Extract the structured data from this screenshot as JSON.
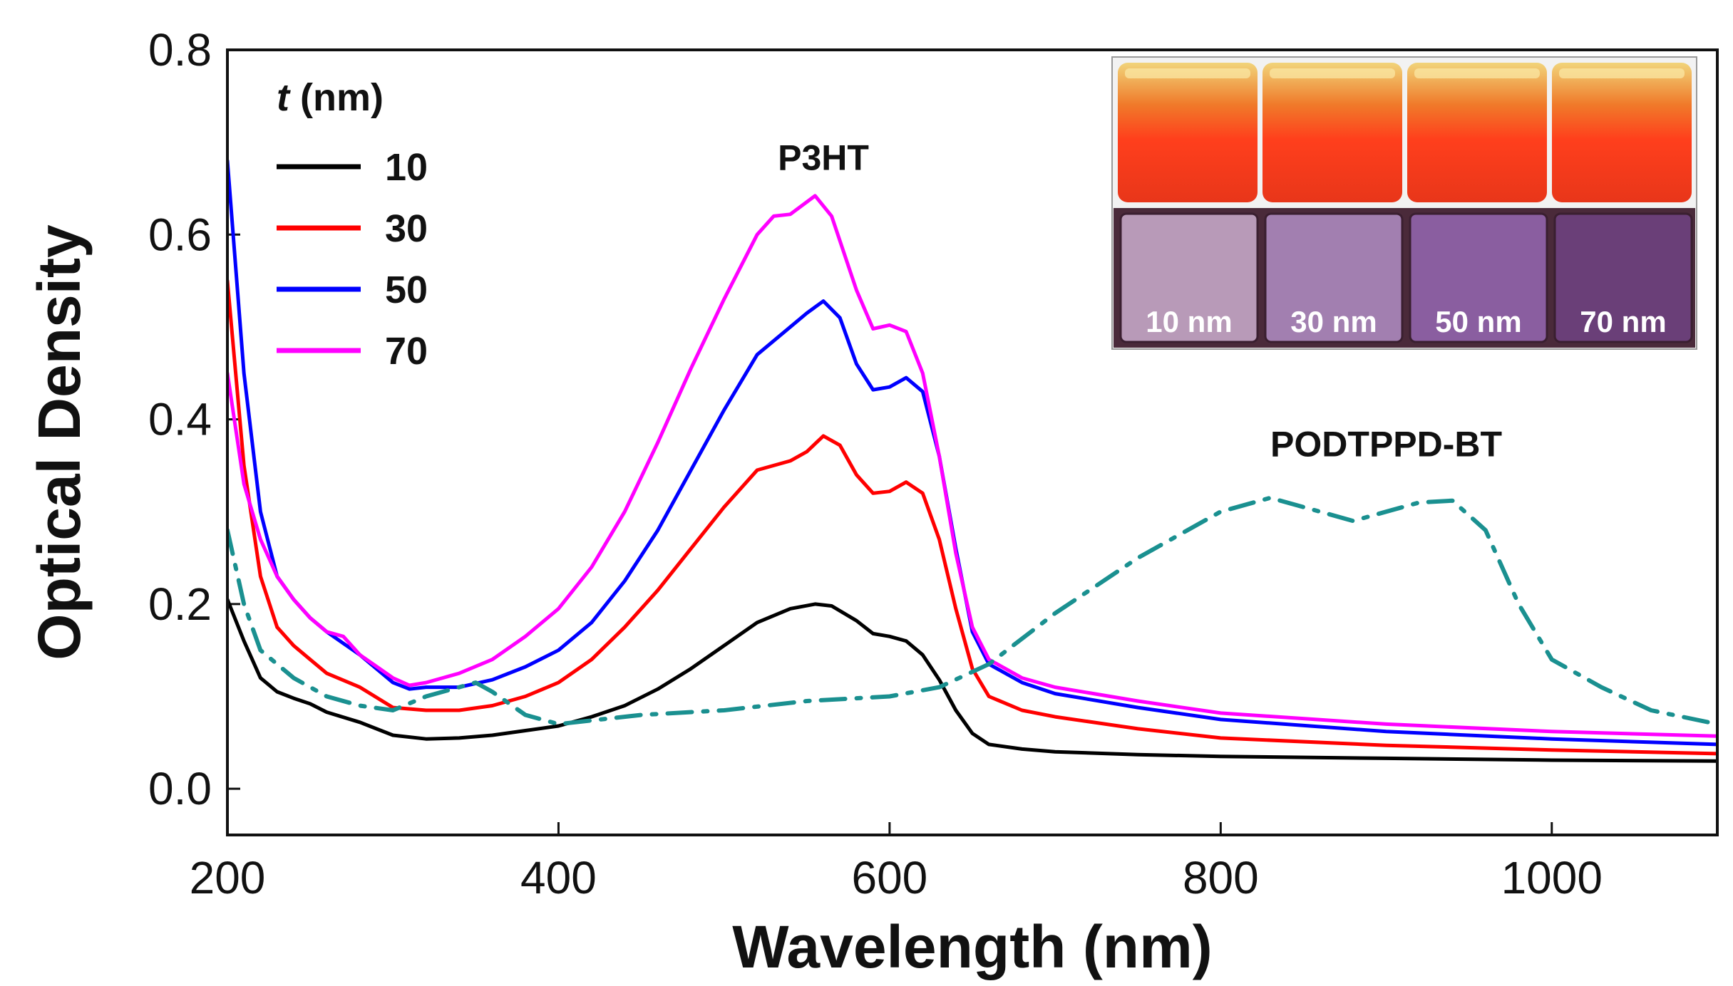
{
  "chart_data": {
    "type": "line",
    "title": "",
    "xlabel": "Wavelength (nm)",
    "ylabel": "Optical Density",
    "xlim": [
      200,
      1100
    ],
    "ylim": [
      -0.05,
      0.8
    ],
    "xticks": [
      200,
      400,
      600,
      800,
      1000
    ],
    "yticks": [
      0.0,
      0.2,
      0.4,
      0.6,
      0.8
    ],
    "xtick_labels": [
      "200",
      "400",
      "600",
      "800",
      "1000"
    ],
    "ytick_labels": [
      "0.0",
      "0.2",
      "0.4",
      "0.6",
      "0.8"
    ],
    "legend": {
      "title_italic": "t",
      "title_rest": " (nm)",
      "position": "top-left",
      "entries": [
        {
          "label": "10",
          "series": 0
        },
        {
          "label": "30",
          "series": 1
        },
        {
          "label": "50",
          "series": 2
        },
        {
          "label": "70",
          "series": 3
        }
      ]
    },
    "annotations": [
      {
        "text": "P3HT",
        "x": 560,
        "y": 0.67
      },
      {
        "text": "PODTPPD-BT",
        "x": 900,
        "y": 0.36
      }
    ],
    "inset": {
      "labels": [
        "10 nm",
        "30 nm",
        "50 nm",
        "70 nm"
      ]
    },
    "series": [
      {
        "name": "10",
        "color": "#000000",
        "style": "solid",
        "x": [
          200,
          210,
          220,
          230,
          240,
          250,
          260,
          280,
          300,
          320,
          340,
          360,
          380,
          400,
          420,
          440,
          460,
          480,
          500,
          520,
          540,
          555,
          565,
          580,
          590,
          600,
          610,
          620,
          630,
          640,
          650,
          660,
          680,
          700,
          750,
          800,
          900,
          1000,
          1100
        ],
        "y": [
          0.205,
          0.16,
          0.12,
          0.105,
          0.098,
          0.092,
          0.083,
          0.072,
          0.058,
          0.054,
          0.055,
          0.058,
          0.063,
          0.068,
          0.078,
          0.09,
          0.108,
          0.13,
          0.155,
          0.18,
          0.195,
          0.2,
          0.198,
          0.182,
          0.168,
          0.165,
          0.16,
          0.145,
          0.118,
          0.085,
          0.06,
          0.048,
          0.043,
          0.04,
          0.037,
          0.035,
          0.033,
          0.031,
          0.03
        ]
      },
      {
        "name": "30",
        "color": "#ff0000",
        "style": "solid",
        "x": [
          200,
          210,
          220,
          230,
          240,
          250,
          260,
          280,
          300,
          320,
          340,
          360,
          380,
          400,
          420,
          440,
          460,
          480,
          500,
          520,
          540,
          550,
          560,
          570,
          580,
          590,
          600,
          610,
          620,
          630,
          640,
          650,
          660,
          680,
          700,
          750,
          800,
          900,
          1000,
          1100
        ],
        "y": [
          0.55,
          0.35,
          0.23,
          0.175,
          0.155,
          0.14,
          0.125,
          0.11,
          0.088,
          0.085,
          0.085,
          0.09,
          0.1,
          0.115,
          0.14,
          0.175,
          0.215,
          0.26,
          0.305,
          0.345,
          0.355,
          0.365,
          0.382,
          0.372,
          0.34,
          0.32,
          0.322,
          0.332,
          0.32,
          0.27,
          0.195,
          0.13,
          0.1,
          0.085,
          0.078,
          0.065,
          0.055,
          0.047,
          0.042,
          0.038
        ]
      },
      {
        "name": "50",
        "color": "#0000ff",
        "style": "solid",
        "x": [
          200,
          210,
          220,
          230,
          240,
          250,
          260,
          280,
          300,
          310,
          320,
          340,
          360,
          380,
          400,
          420,
          440,
          460,
          480,
          500,
          520,
          540,
          550,
          560,
          570,
          580,
          590,
          600,
          610,
          620,
          630,
          640,
          650,
          660,
          680,
          700,
          750,
          800,
          900,
          1000,
          1100
        ],
        "y": [
          0.68,
          0.45,
          0.3,
          0.23,
          0.205,
          0.185,
          0.17,
          0.145,
          0.115,
          0.108,
          0.11,
          0.11,
          0.118,
          0.132,
          0.15,
          0.18,
          0.225,
          0.28,
          0.345,
          0.41,
          0.47,
          0.5,
          0.515,
          0.528,
          0.51,
          0.46,
          0.432,
          0.435,
          0.445,
          0.43,
          0.36,
          0.26,
          0.17,
          0.135,
          0.115,
          0.103,
          0.088,
          0.075,
          0.062,
          0.054,
          0.048
        ]
      },
      {
        "name": "70",
        "color": "#ff00ff",
        "style": "solid",
        "x": [
          200,
          210,
          220,
          230,
          240,
          250,
          260,
          270,
          280,
          300,
          310,
          320,
          340,
          360,
          380,
          400,
          420,
          440,
          460,
          480,
          500,
          520,
          530,
          540,
          555,
          565,
          580,
          590,
          600,
          610,
          620,
          630,
          640,
          650,
          660,
          680,
          700,
          750,
          800,
          900,
          1000,
          1100
        ],
        "y": [
          0.45,
          0.33,
          0.27,
          0.23,
          0.205,
          0.185,
          0.17,
          0.165,
          0.145,
          0.12,
          0.112,
          0.115,
          0.125,
          0.14,
          0.165,
          0.195,
          0.24,
          0.3,
          0.375,
          0.455,
          0.53,
          0.6,
          0.62,
          0.622,
          0.642,
          0.62,
          0.54,
          0.498,
          0.502,
          0.495,
          0.45,
          0.36,
          0.255,
          0.175,
          0.14,
          0.12,
          0.11,
          0.095,
          0.082,
          0.07,
          0.062,
          0.057
        ]
      },
      {
        "name": "PODTPPD-BT",
        "color": "#1a9090",
        "style": "dashdot",
        "x": [
          200,
          210,
          220,
          240,
          260,
          280,
          300,
          320,
          340,
          350,
          360,
          380,
          400,
          450,
          500,
          550,
          600,
          630,
          660,
          700,
          750,
          800,
          830,
          860,
          880,
          900,
          920,
          940,
          960,
          980,
          1000,
          1030,
          1060,
          1100
        ],
        "y": [
          0.28,
          0.2,
          0.15,
          0.12,
          0.1,
          0.09,
          0.085,
          0.1,
          0.11,
          0.115,
          0.105,
          0.08,
          0.07,
          0.08,
          0.085,
          0.095,
          0.1,
          0.11,
          0.135,
          0.19,
          0.25,
          0.3,
          0.315,
          0.3,
          0.29,
          0.3,
          0.31,
          0.312,
          0.28,
          0.2,
          0.14,
          0.11,
          0.085,
          0.07
        ]
      }
    ]
  }
}
